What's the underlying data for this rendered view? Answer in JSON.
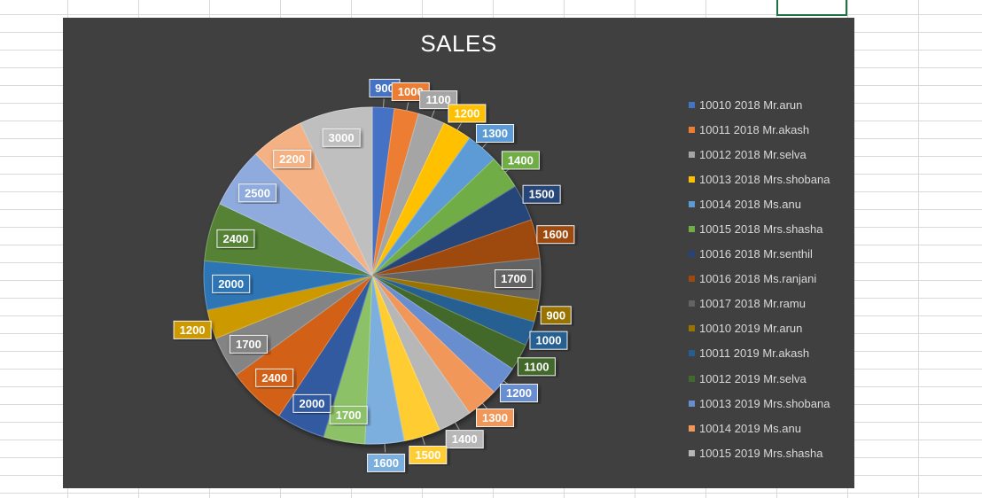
{
  "chart_data": {
    "type": "pie",
    "title": "SALES",
    "legend_position": "right",
    "background": "#404040",
    "slices": [
      {
        "label": "10010 2018 Mr.arun",
        "value": 900,
        "color": "#4472c4"
      },
      {
        "label": "10011 2018 Mr.akash",
        "value": 1000,
        "color": "#ed7d31"
      },
      {
        "label": "10012 2018 Mr.selva",
        "value": 1100,
        "color": "#a5a5a5"
      },
      {
        "label": "10013 2018 Mrs.shobana",
        "value": 1200,
        "color": "#ffc000"
      },
      {
        "label": "10014 2018 Ms.anu",
        "value": 1300,
        "color": "#5b9bd5"
      },
      {
        "label": "10015 2018 Mrs.shasha",
        "value": 1400,
        "color": "#70ad47"
      },
      {
        "label": "10016 2018 Mr.senthil",
        "value": 1500,
        "color": "#264478"
      },
      {
        "label": "10016 2018 Ms.ranjani",
        "value": 1600,
        "color": "#9e480e"
      },
      {
        "label": "10017 2018 Mr.ramu",
        "value": 1700,
        "color": "#636363"
      },
      {
        "label": "10010 2019 Mr.arun",
        "value": 900,
        "color": "#997300"
      },
      {
        "label": "10011 2019 Mr.akash",
        "value": 1000,
        "color": "#255e91"
      },
      {
        "label": "10012 2019 Mr.selva",
        "value": 1100,
        "color": "#43682b"
      },
      {
        "label": "10013 2019 Mrs.shobana",
        "value": 1200,
        "color": "#698ed0"
      },
      {
        "label": "10014 2019 Ms.anu",
        "value": 1300,
        "color": "#f1975a"
      },
      {
        "label": "10015 2019 Mrs.shasha",
        "value": 1400,
        "color": "#b7b7b7"
      },
      {
        "label": "",
        "value": 1500,
        "color": "#ffcd33"
      },
      {
        "label": "",
        "value": 1600,
        "color": "#7cafdd"
      },
      {
        "label": "",
        "value": 1700,
        "color": "#8cc168"
      },
      {
        "label": "",
        "value": 2000,
        "color": "#335aa1"
      },
      {
        "label": "",
        "value": 2400,
        "color": "#d26012"
      },
      {
        "label": "",
        "value": 1700,
        "color": "#848484"
      },
      {
        "label": "",
        "value": 1200,
        "color": "#cc9a00"
      },
      {
        "label": "",
        "value": 2000,
        "color": "#2e75b6"
      },
      {
        "label": "",
        "value": 2400,
        "color": "#548235"
      },
      {
        "label": "",
        "value": 2500,
        "color": "#8faadc"
      },
      {
        "label": "",
        "value": 2200,
        "color": "#f4b183"
      },
      {
        "label": "",
        "value": 3000,
        "color": "#bfbfbf"
      }
    ],
    "legend_visible_count": 15
  }
}
